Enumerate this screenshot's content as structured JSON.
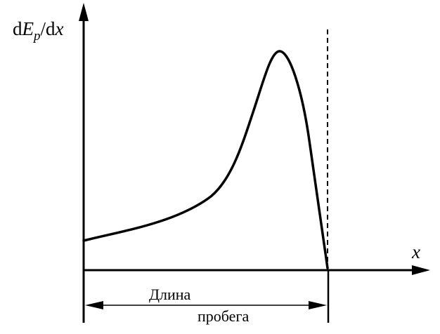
{
  "labels": {
    "y_axis_label_d": "d",
    "y_axis_label_E": "E",
    "y_axis_label_sub": "p",
    "y_axis_label_rest_d": "/d",
    "y_axis_label_x": "x",
    "x_axis_label": "x",
    "range_label_line1": "Длина",
    "range_label_line2": "пробега"
  },
  "colors": {
    "ink": "#000000",
    "background": "#ffffff"
  }
}
